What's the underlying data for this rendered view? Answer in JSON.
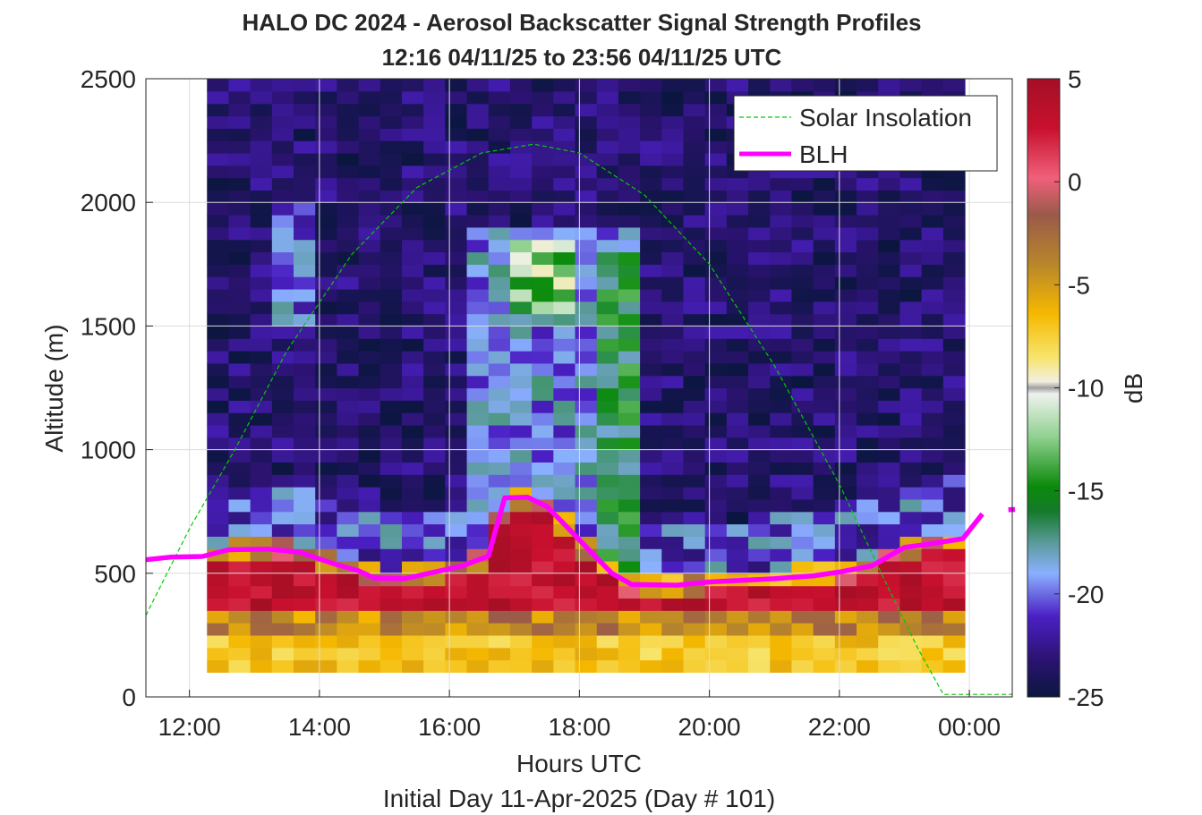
{
  "chart_data": {
    "type": "heatmap",
    "title": "HALO DC 2024 - Aerosol Backscatter Signal Strength Profiles",
    "subtitle": "12:16 04/11/25 to 23:56 04/11/25  UTC",
    "xlabel": "Hours UTC",
    "xlabel2": "Initial Day 11-Apr-2025 (Day # 101)",
    "ylabel": "Altitude (m)",
    "x_ticks": [
      "12:00",
      "14:00",
      "16:00",
      "18:00",
      "20:00",
      "22:00",
      "00:00"
    ],
    "y_ticks": [
      "0",
      "500",
      "1000",
      "1500",
      "2000",
      "2500"
    ],
    "xlim_hours": [
      11.33,
      24.66
    ],
    "ylim": [
      0,
      2500
    ],
    "grid": true,
    "legend_position": "top-right",
    "colorbar": {
      "label": "dB",
      "ticks": [
        "5",
        "0",
        "-5",
        "-10",
        "-15",
        "-20",
        "-25"
      ],
      "range": [
        -25,
        5
      ]
    },
    "heatmap": {
      "x_start_hours": 12.27,
      "x_end_hours": 23.93,
      "alt_start_m": 100,
      "alt_end_m": 2500,
      "n_columns": 35,
      "n_rows": 48,
      "description": "Strong backscatter (-5..5 dB) below ~600 m, moderate (-20..-13 dB) plume 600-1900 m between 16:00 and 19:00, clear (-25..-22 dB) elsewhere"
    },
    "series": [
      {
        "name": "Solar Insolation",
        "style": "dashed",
        "color": "#00cc00",
        "points": [
          [
            11.33,
            330
          ],
          [
            12.0,
            680
          ],
          [
            12.7,
            1000
          ],
          [
            13.5,
            1400
          ],
          [
            14.5,
            1790
          ],
          [
            15.5,
            2060
          ],
          [
            16.5,
            2200
          ],
          [
            17.3,
            2235
          ],
          [
            18.0,
            2200
          ],
          [
            19.0,
            2030
          ],
          [
            20.0,
            1750
          ],
          [
            21.0,
            1340
          ],
          [
            22.0,
            860
          ],
          [
            22.7,
            470
          ],
          [
            23.2,
            200
          ],
          [
            23.6,
            10
          ],
          [
            24.66,
            10
          ]
        ]
      },
      {
        "name": "BLH",
        "style": "solid",
        "color": "#ff00ff",
        "points": [
          [
            11.33,
            555
          ],
          [
            11.7,
            565
          ],
          [
            12.2,
            568
          ],
          [
            12.6,
            595
          ],
          [
            13.2,
            598
          ],
          [
            13.7,
            585
          ],
          [
            14.2,
            540
          ],
          [
            14.6,
            510
          ],
          [
            14.85,
            480
          ],
          [
            15.3,
            478
          ],
          [
            15.6,
            495
          ],
          [
            16.2,
            530
          ],
          [
            16.6,
            570
          ],
          [
            16.85,
            805
          ],
          [
            17.2,
            808
          ],
          [
            17.5,
            770
          ],
          [
            17.8,
            690
          ],
          [
            18.2,
            580
          ],
          [
            18.5,
            500
          ],
          [
            18.8,
            455
          ],
          [
            19.5,
            452
          ],
          [
            20.0,
            465
          ],
          [
            21.0,
            478
          ],
          [
            21.6,
            490
          ],
          [
            22.0,
            505
          ],
          [
            22.5,
            530
          ],
          [
            23.0,
            605
          ],
          [
            23.3,
            615
          ],
          [
            23.9,
            640
          ],
          [
            24.2,
            740
          ],
          [
            24.4,
            755
          ],
          [
            24.66,
            760
          ]
        ]
      }
    ]
  }
}
